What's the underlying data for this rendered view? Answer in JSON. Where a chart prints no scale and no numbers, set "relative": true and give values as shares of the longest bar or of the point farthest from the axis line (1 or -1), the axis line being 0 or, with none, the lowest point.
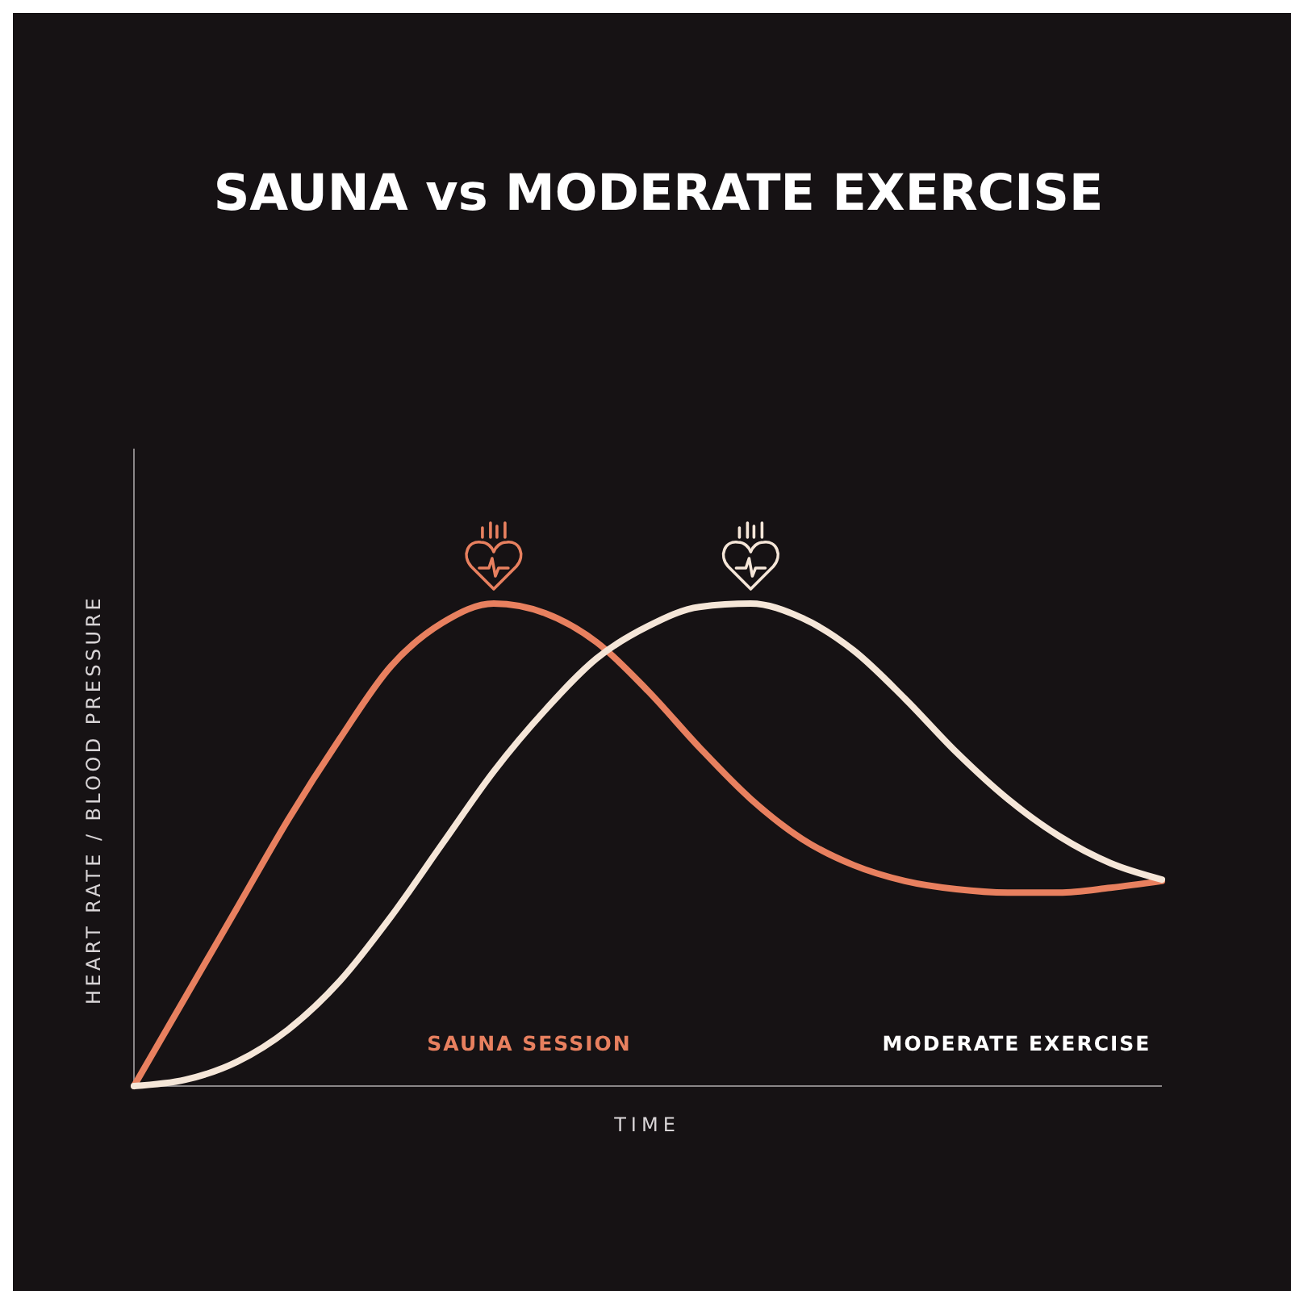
{
  "chart_data": {
    "type": "line",
    "title": "SAUNA vs MODERATE EXERCISE",
    "xlabel": "TIME",
    "ylabel": "HEART RATE / BLOOD PRESSURE",
    "relative": true,
    "categories": [
      null,
      null,
      null,
      null,
      null,
      null,
      null,
      null,
      null,
      null,
      null,
      null,
      null,
      null,
      null,
      null,
      null,
      null,
      null,
      null,
      null
    ],
    "series": [
      {
        "name": "SAUNA SESSION",
        "color": "#e8805f",
        "values": [
          0,
          0.184,
          0.368,
          0.552,
          0.719,
          0.87,
          0.96,
          1,
          0.98,
          0.92,
          0.819,
          0.702,
          0.595,
          0.512,
          0.458,
          0.425,
          0.408,
          0.401,
          0.401,
          0.411,
          0.425
        ]
      },
      {
        "name": "MODERATE EXERCISE",
        "color": "#f5e6d8",
        "values": [
          0,
          0.013,
          0.05,
          0.117,
          0.217,
          0.351,
          0.502,
          0.652,
          0.779,
          0.886,
          0.953,
          0.993,
          1,
          0.97,
          0.903,
          0.803,
          0.692,
          0.595,
          0.518,
          0.462,
          0.428
        ]
      }
    ]
  }
}
